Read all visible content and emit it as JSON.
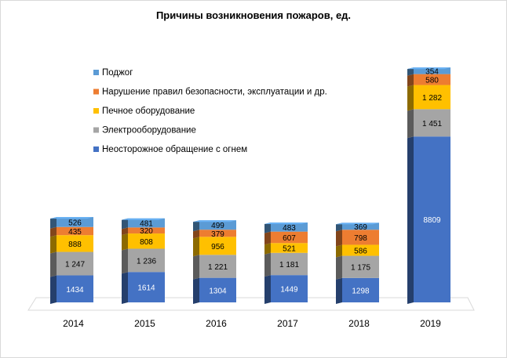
{
  "chart_data": {
    "type": "bar",
    "stacked": true,
    "three_d": true,
    "title": "Причины возникновения пожаров, ед.",
    "categories": [
      "2014",
      "2015",
      "2016",
      "2017",
      "2018",
      "2019"
    ],
    "series": [
      {
        "name": "Неосторожное обращение с огнем",
        "color": "#4472C4",
        "values": [
          1434,
          1614,
          1304,
          1449,
          1298,
          8809
        ],
        "labels": [
          "1434",
          "1614",
          "1304",
          "1449",
          "1298",
          "8809"
        ]
      },
      {
        "name": "Электрооборудование",
        "color": "#A5A5A5",
        "values": [
          1247,
          1236,
          1221,
          1181,
          1175,
          1451
        ],
        "labels": [
          "1 247",
          "1 236",
          "1 221",
          "1 181",
          "1 175",
          "1 451"
        ]
      },
      {
        "name": "Печное оборудование",
        "color": "#FFC000",
        "values": [
          888,
          808,
          956,
          521,
          586,
          1282
        ],
        "labels": [
          "888",
          "808",
          "956",
          "521",
          "586",
          "1 282"
        ]
      },
      {
        "name": "Нарушение правил безопасности, эксплуатации и др.",
        "color": "#ED7D31",
        "values": [
          435,
          320,
          379,
          607,
          798,
          580
        ],
        "labels": [
          "435",
          "320",
          "379",
          "607",
          "798",
          "580"
        ]
      },
      {
        "name": "Поджог",
        "color": "#5B9BD5",
        "values": [
          526,
          481,
          499,
          483,
          369,
          354
        ],
        "labels": [
          "526",
          "481",
          "499",
          "483",
          "369",
          "354"
        ]
      }
    ],
    "legend_position": "top-left",
    "legend_order": [
      4,
      3,
      2,
      1,
      0
    ],
    "grid": false,
    "frame_color": "#D9D9D9"
  }
}
